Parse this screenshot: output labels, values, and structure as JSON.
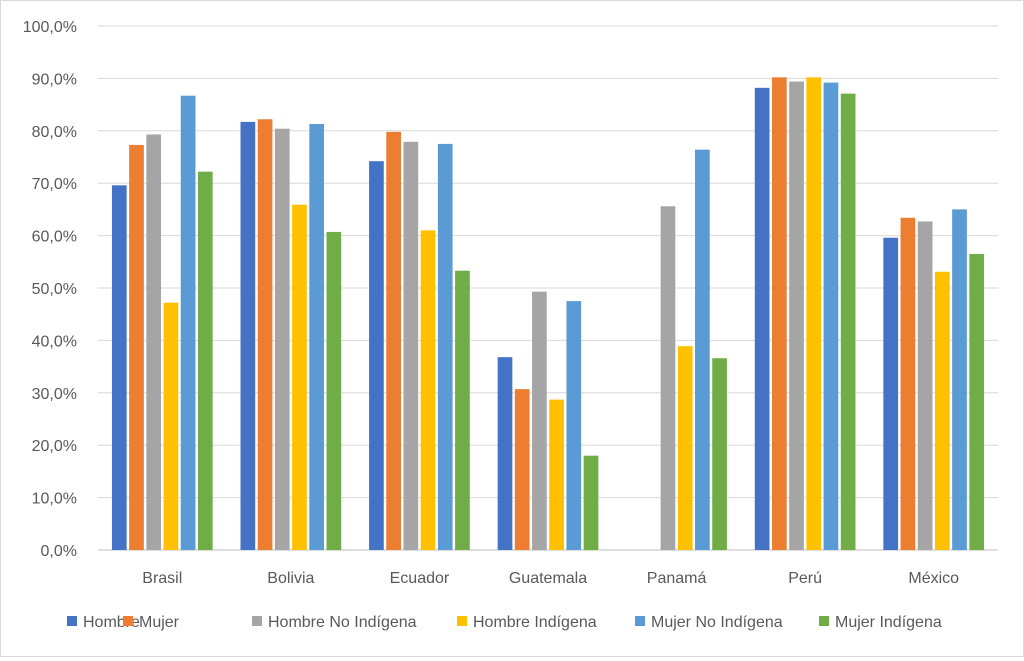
{
  "chart_data": {
    "type": "bar",
    "title": "",
    "xlabel": "",
    "ylabel": "",
    "ylim": [
      0,
      100
    ],
    "y_ticks": [
      0,
      10,
      20,
      30,
      40,
      50,
      60,
      70,
      80,
      90,
      100
    ],
    "y_tick_labels": [
      "0,0%",
      "10,0%",
      "20,0%",
      "30,0%",
      "40,0%",
      "50,0%",
      "60,0%",
      "70,0%",
      "80,0%",
      "90,0%",
      "100,0%"
    ],
    "grid": true,
    "legend_position": "bottom",
    "categories": [
      "Brasil",
      "Bolivia",
      "Ecuador",
      "Guatemala",
      "Panamá",
      "Perú",
      "México"
    ],
    "series": [
      {
        "name": "Hombre",
        "color": "#4472C4",
        "values": [
          69.6,
          81.7,
          74.2,
          36.8,
          null,
          88.2,
          59.6
        ]
      },
      {
        "name": "Mujer",
        "color": "#ED7D31",
        "values": [
          77.3,
          82.2,
          79.8,
          30.7,
          null,
          90.2,
          63.4
        ]
      },
      {
        "name": "Hombre No Indígena",
        "color": "#A5A5A5",
        "values": [
          79.3,
          80.4,
          77.9,
          49.3,
          65.6,
          89.4,
          62.7
        ]
      },
      {
        "name": "Hombre Indígena",
        "color": "#FFC000",
        "values": [
          47.2,
          65.9,
          61.0,
          28.7,
          38.9,
          90.2,
          53.1
        ]
      },
      {
        "name": "Mujer No Indígena",
        "color": "#5B9BD5",
        "values": [
          86.7,
          81.3,
          77.5,
          47.5,
          76.4,
          89.2,
          65.0
        ]
      },
      {
        "name": "Mujer Indígena",
        "color": "#70AD47",
        "values": [
          72.2,
          60.7,
          53.3,
          18.0,
          36.6,
          87.1,
          56.5
        ]
      }
    ]
  }
}
